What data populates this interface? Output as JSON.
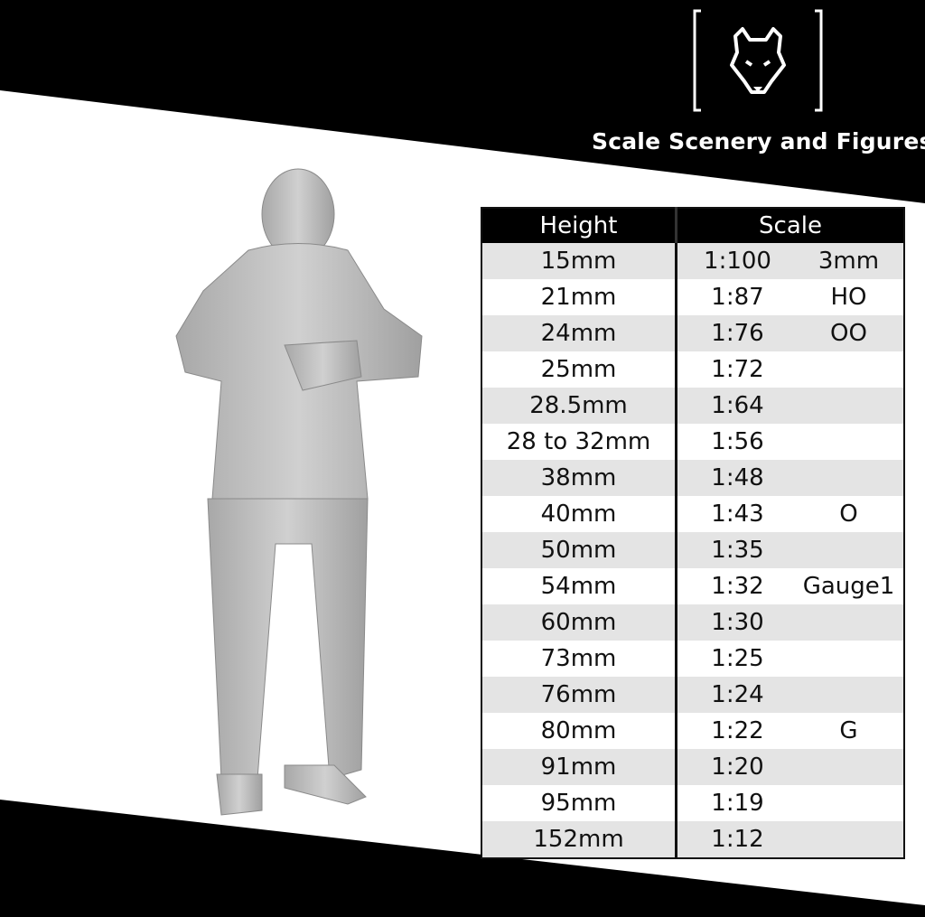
{
  "brand": {
    "name": "Scale Scenery and Figures",
    "logo_icon": "wolf-head-icon"
  },
  "colors": {
    "background": "#000000",
    "band": "#ffffff",
    "row_alt": "#e4e4e4",
    "figure": "#bdbdbd"
  },
  "table": {
    "headers": [
      "Height",
      "Scale"
    ],
    "rows": [
      {
        "height": "15mm",
        "ratio": "1:100",
        "gauge": "3mm"
      },
      {
        "height": "21mm",
        "ratio": "1:87",
        "gauge": "HO"
      },
      {
        "height": "24mm",
        "ratio": "1:76",
        "gauge": "OO"
      },
      {
        "height": "25mm",
        "ratio": "1:72",
        "gauge": ""
      },
      {
        "height": "28.5mm",
        "ratio": "1:64",
        "gauge": ""
      },
      {
        "height": "28 to 32mm",
        "ratio": "1:56",
        "gauge": ""
      },
      {
        "height": "38mm",
        "ratio": "1:48",
        "gauge": ""
      },
      {
        "height": "40mm",
        "ratio": "1:43",
        "gauge": "O"
      },
      {
        "height": "50mm",
        "ratio": "1:35",
        "gauge": ""
      },
      {
        "height": "54mm",
        "ratio": "1:32",
        "gauge": "Gauge1"
      },
      {
        "height": "60mm",
        "ratio": "1:30",
        "gauge": ""
      },
      {
        "height": "73mm",
        "ratio": "1:25",
        "gauge": ""
      },
      {
        "height": "76mm",
        "ratio": "1:24",
        "gauge": ""
      },
      {
        "height": "80mm",
        "ratio": "1:22",
        "gauge": "G"
      },
      {
        "height": "91mm",
        "ratio": "1:20",
        "gauge": ""
      },
      {
        "height": "95mm",
        "ratio": "1:19",
        "gauge": ""
      },
      {
        "height": "152mm",
        "ratio": "1:12",
        "gauge": ""
      }
    ]
  }
}
